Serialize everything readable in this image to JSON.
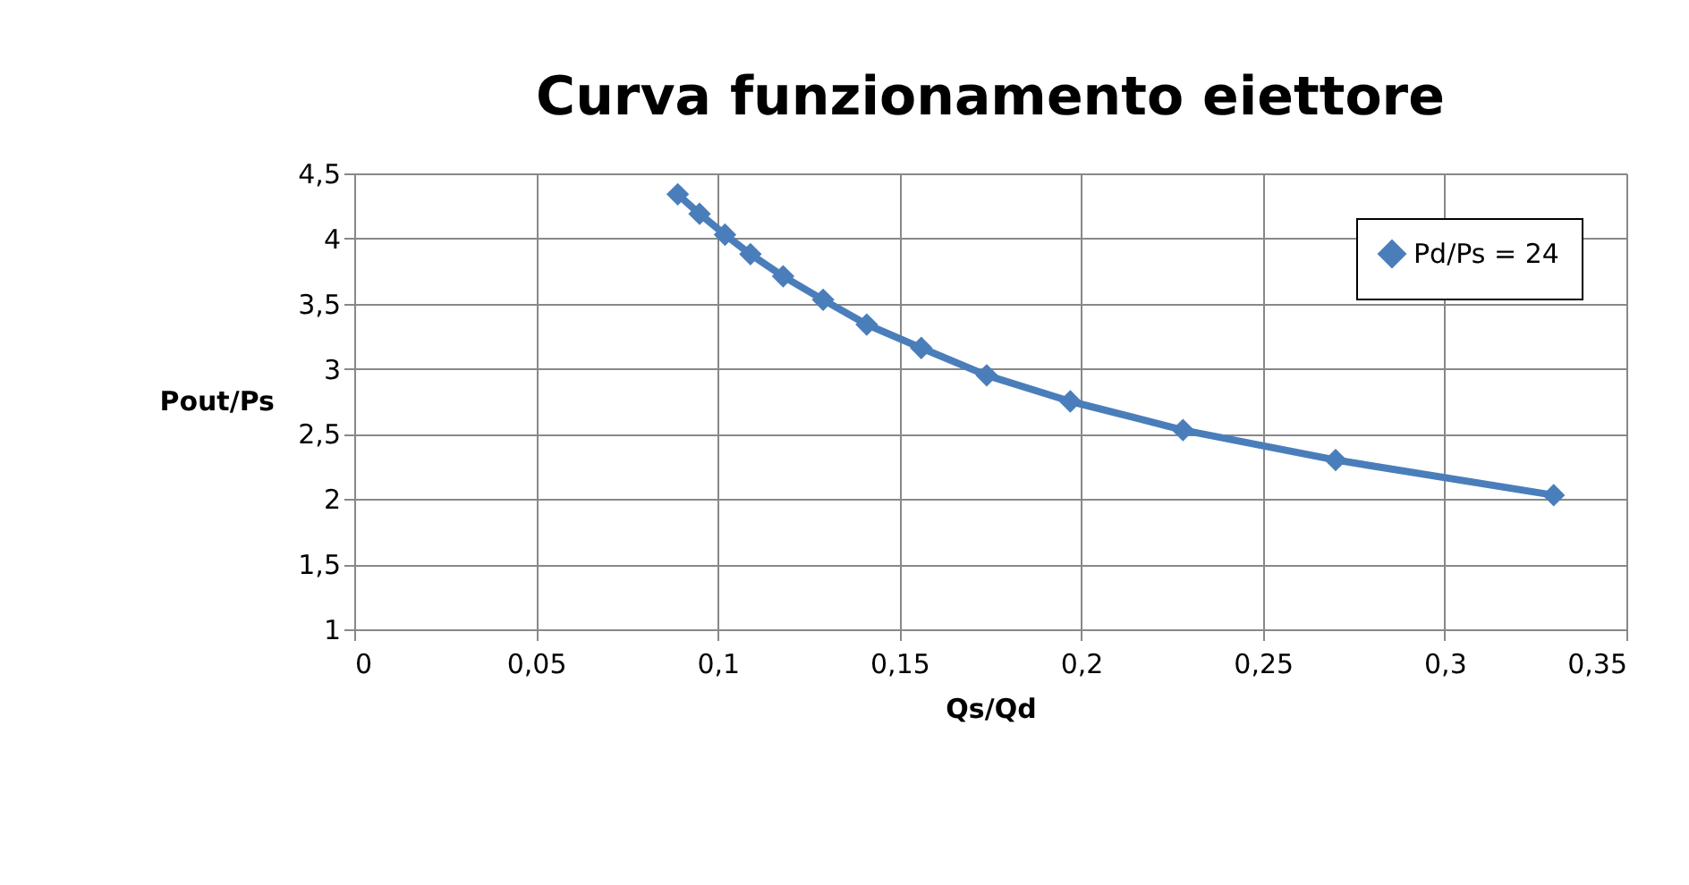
{
  "chart_data": {
    "type": "line",
    "title": "Curva funzionamento eiettore",
    "xlabel": "Qs/Qd",
    "ylabel": "Pout/Ps",
    "x": [
      0.089,
      0.095,
      0.102,
      0.109,
      0.118,
      0.129,
      0.141,
      0.156,
      0.174,
      0.197,
      0.228,
      0.27,
      0.33
    ],
    "series": [
      {
        "name": "Pd/Ps = 24",
        "color": "#4a7ebb",
        "values": [
          4.34,
          4.19,
          4.03,
          3.88,
          3.71,
          3.53,
          3.34,
          3.16,
          2.95,
          2.75,
          2.53,
          2.3,
          2.03
        ]
      }
    ],
    "xlim": [
      0,
      0.35
    ],
    "xticks": [
      0,
      {
        "value": 0.05,
        "label": "0,05"
      },
      {
        "value": 0.1,
        "label": "0,1"
      },
      {
        "value": 0.15,
        "label": "0,15"
      },
      {
        "value": 0.2,
        "label": "0,2"
      },
      {
        "value": 0.25,
        "label": "0,25"
      },
      {
        "value": 0.3,
        "label": "0,3"
      },
      {
        "value": 0.35,
        "label": "0,35"
      }
    ],
    "ylim": [
      1,
      4.5
    ],
    "yticks": [
      1,
      {
        "value": 1.5,
        "label": "1,5"
      },
      2,
      {
        "value": 2.5,
        "label": "2,5"
      },
      3,
      {
        "value": 3.5,
        "label": "3,5"
      },
      4,
      {
        "value": 4.5,
        "label": "4,5"
      }
    ],
    "grid": true,
    "legend": "top right",
    "marker": "diamond",
    "line_style": "solid"
  }
}
